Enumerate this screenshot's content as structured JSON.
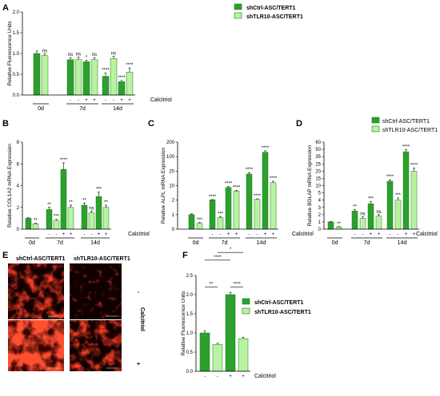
{
  "colors": {
    "shctrl": "#2ca02c",
    "shtlr10": "#b8f2a2",
    "edge": "#1e7a1e",
    "axis": "#000000"
  },
  "legend": [
    {
      "name": "shCtrl-ASC/TERT1",
      "color": "#2ca02c"
    },
    {
      "name": "shTLR10-ASC/TERT1",
      "color": "#b8f2a2"
    }
  ],
  "calcitriol_label": "Calcitriol",
  "microscopy": {
    "panel_label": "E",
    "columns": [
      "shCtrl-ASC/TERT1",
      "shTLR10-ASC/TERT1"
    ],
    "side_label": "Calcitriol",
    "row_signs": [
      "-",
      "+"
    ]
  },
  "chart_data": [
    {
      "panel": "A",
      "type": "bar",
      "ylabel": "Relative Fluorescence Units",
      "yticks": [
        "0.0",
        "0.5",
        "1.0",
        "1.5",
        "2.0"
      ],
      "ylim": [
        0,
        2.0
      ],
      "groups": [
        "0d",
        "7d",
        "14d"
      ],
      "calcitriol": [
        "",
        "",
        "-",
        "-",
        "+",
        "+",
        "-",
        "-",
        "+",
        "+"
      ],
      "bars": [
        {
          "series": 0,
          "value": 1.0,
          "err": 0.06,
          "sig": ""
        },
        {
          "series": 1,
          "value": 0.95,
          "err": 0.04,
          "sig": "ns"
        },
        {
          "series": 0,
          "value": 0.85,
          "err": 0.05,
          "sig": "ns"
        },
        {
          "series": 1,
          "value": 0.85,
          "err": 0.06,
          "sig": "ns"
        },
        {
          "series": 0,
          "value": 0.8,
          "err": 0.04,
          "sig": "*"
        },
        {
          "series": 1,
          "value": 0.85,
          "err": 0.05,
          "sig": "ns"
        },
        {
          "series": 0,
          "value": 0.45,
          "err": 0.08,
          "sig": "****"
        },
        {
          "series": 1,
          "value": 0.88,
          "err": 0.05,
          "sig": "ns"
        },
        {
          "series": 0,
          "value": 0.32,
          "err": 0.03,
          "sig": "****"
        },
        {
          "series": 1,
          "value": 0.55,
          "err": 0.1,
          "sig": "****"
        }
      ]
    },
    {
      "panel": "B",
      "type": "bar",
      "ylabel": "Relative COL1A2 mRNA Expression",
      "yticks": [
        "0",
        "2",
        "4",
        "6",
        "8"
      ],
      "ylim": [
        0,
        8
      ],
      "groups": [
        "0d",
        "7d",
        "14d"
      ],
      "calcitriol": [
        "",
        "",
        "-",
        "-",
        "+",
        "+",
        "-",
        "-",
        "+",
        "+"
      ],
      "bars": [
        {
          "series": 0,
          "value": 1.0,
          "err": 0.05,
          "sig": ""
        },
        {
          "series": 1,
          "value": 0.5,
          "err": 0.05,
          "sig": "**"
        },
        {
          "series": 0,
          "value": 1.8,
          "err": 0.2,
          "sig": "**"
        },
        {
          "series": 1,
          "value": 0.8,
          "err": 0.1,
          "sig": "***"
        },
        {
          "series": 0,
          "value": 5.5,
          "err": 0.6,
          "sig": "****"
        },
        {
          "series": 1,
          "value": 2.0,
          "err": 0.2,
          "sig": "**"
        },
        {
          "series": 0,
          "value": 2.2,
          "err": 0.2,
          "sig": "**"
        },
        {
          "series": 1,
          "value": 1.5,
          "err": 0.15,
          "sig": "ns"
        },
        {
          "series": 0,
          "value": 3.0,
          "err": 0.4,
          "sig": "***"
        },
        {
          "series": 1,
          "value": 2.0,
          "err": 0.2,
          "sig": "**"
        }
      ]
    },
    {
      "panel": "C",
      "type": "bar",
      "ylabel": "Relative ALPL mRNA Expression",
      "yaxis": "broken",
      "yticks": [
        "0",
        "1",
        "2",
        "10",
        "20",
        "100",
        "200"
      ],
      "groups": [
        "0d",
        "7d",
        "14d"
      ],
      "calcitriol": [
        "",
        "",
        "-",
        "-",
        "+",
        "+",
        "-",
        "-",
        "+",
        "+"
      ],
      "bars": [
        {
          "series": 0,
          "value": 1.0,
          "err": 0.05,
          "sig": ""
        },
        {
          "series": 1,
          "value": 0.4,
          "err": 0.05,
          "sig": "***"
        },
        {
          "series": 0,
          "value": 2.2,
          "err": 0.1,
          "sig": "****"
        },
        {
          "series": 1,
          "value": 0.8,
          "err": 0.05,
          "sig": "***"
        },
        {
          "series": 0,
          "value": 9.0,
          "err": 0.5,
          "sig": "****"
        },
        {
          "series": 1,
          "value": 7.0,
          "err": 0.4,
          "sig": "****"
        },
        {
          "series": 0,
          "value": 18.0,
          "err": 1.0,
          "sig": "****"
        },
        {
          "series": 1,
          "value": 2.5,
          "err": 0.2,
          "sig": "****"
        },
        {
          "series": 0,
          "value": 130.0,
          "err": 10.0,
          "sig": "****"
        },
        {
          "series": 1,
          "value": 12.0,
          "err": 1.0,
          "sig": "****"
        }
      ]
    },
    {
      "panel": "D",
      "type": "bar",
      "ylabel": "Relative BGLAP mRNA Expression",
      "yaxis": "broken",
      "yticks": [
        "0",
        "1",
        "2",
        "3",
        "4",
        "5",
        "10",
        "15",
        "20",
        "25",
        "35",
        "50",
        "60"
      ],
      "groups": [
        "0d",
        "7d",
        "14d"
      ],
      "calcitriol": [
        "",
        "",
        "-",
        "-",
        "+",
        "+",
        "-",
        "-",
        "+",
        "+"
      ],
      "bars": [
        {
          "series": 0,
          "value": 1.0,
          "err": 0.05,
          "sig": ""
        },
        {
          "series": 1,
          "value": 0.3,
          "err": 0.05,
          "sig": "**"
        },
        {
          "series": 0,
          "value": 2.5,
          "err": 0.2,
          "sig": "**"
        },
        {
          "series": 1,
          "value": 1.5,
          "err": 0.2,
          "sig": "ns"
        },
        {
          "series": 0,
          "value": 3.5,
          "err": 0.3,
          "sig": "***"
        },
        {
          "series": 1,
          "value": 1.8,
          "err": 0.2,
          "sig": "ns"
        },
        {
          "series": 0,
          "value": 13.0,
          "err": 1.0,
          "sig": "****"
        },
        {
          "series": 1,
          "value": 4.0,
          "err": 0.3,
          "sig": "***"
        },
        {
          "series": 0,
          "value": 45.0,
          "err": 4.0,
          "sig": "****"
        },
        {
          "series": 1,
          "value": 20.0,
          "err": 2.0,
          "sig": "****"
        }
      ]
    },
    {
      "panel": "F",
      "type": "bar",
      "ylabel": "Relative Fluorescence Units",
      "yticks": [
        "0.0",
        "0.5",
        "1.0",
        "1.5",
        "2.0",
        "2.5"
      ],
      "ylim": [
        0,
        2.5
      ],
      "groups": [],
      "calcitriol": [
        "-",
        "-",
        "+",
        "+"
      ],
      "bars": [
        {
          "series": 0,
          "value": 1.0,
          "err": 0.05,
          "sig": ""
        },
        {
          "series": 1,
          "value": 0.7,
          "err": 0.03,
          "sig": ""
        },
        {
          "series": 0,
          "value": 2.0,
          "err": 0.06,
          "sig": ""
        },
        {
          "series": 1,
          "value": 0.85,
          "err": 0.04,
          "sig": ""
        }
      ],
      "brackets": [
        {
          "a": 0,
          "b": 1,
          "label": "**"
        },
        {
          "a": 2,
          "b": 3,
          "label": "****"
        },
        {
          "a": 0,
          "b": 2,
          "label": "****"
        },
        {
          "a": 1,
          "b": 3,
          "label": "*"
        }
      ]
    }
  ]
}
